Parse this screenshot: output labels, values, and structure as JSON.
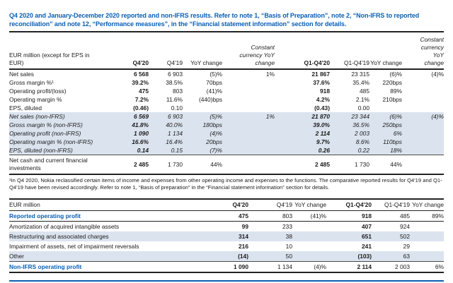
{
  "title": "Q4 2020 and January-December 2020 reported and non-IFRS results. Refer to note 1, “Basis of Preparation”, note 2, “Non-IFRS to reported reconciliation” and note 12, “Performance measures”, in the “Financial statement information” section for details.",
  "colors": {
    "accent_blue": "#0a5fb4",
    "row_shading": "#dbe3ee",
    "rule_dark": "#232323"
  },
  "table1": {
    "unit_label": "EUR million (except for EPS in EUR)",
    "columns": [
      "Q4'20",
      "Q4'19",
      "YoY change",
      "Constant currency YoY change",
      "Q1-Q4'20",
      "Q1-Q4'19",
      "YoY change",
      "Constant currency YoY change"
    ],
    "rows": [
      {
        "label": "Net sales",
        "variant": "reported",
        "values": [
          "6 568",
          "6 903",
          "(5)%",
          "1%",
          "21 867",
          "23 315",
          "(6)%",
          "(4)%"
        ]
      },
      {
        "label": "Gross margin %¹",
        "variant": "reported",
        "values": [
          "39.2%",
          "38.5%",
          "70bps",
          "",
          "37.6%",
          "35.4%",
          "220bps",
          ""
        ]
      },
      {
        "label": "Operating profit/(loss)",
        "variant": "reported",
        "values": [
          "475",
          "803",
          "(41)%",
          "",
          "918",
          "485",
          "89%",
          ""
        ]
      },
      {
        "label": "Operating margin %",
        "variant": "reported",
        "values": [
          "7.2%",
          "11.6%",
          "(440)bps",
          "",
          "4.2%",
          "2.1%",
          "210bps",
          ""
        ]
      },
      {
        "label": "EPS, diluted",
        "variant": "reported",
        "values": [
          "(0.46)",
          "0.10",
          "",
          "",
          "(0.43)",
          "0.00",
          "",
          ""
        ]
      },
      {
        "label": "Net sales (non-IFRS)",
        "variant": "non-ifrs",
        "values": [
          "6 569",
          "6 903",
          "(5)%",
          "1%",
          "21 870",
          "23 344",
          "(6)%",
          "(4)%"
        ]
      },
      {
        "label": "Gross margin % (non-IFRS)",
        "variant": "non-ifrs",
        "values": [
          "41.8%",
          "40.0%",
          "180bps",
          "",
          "39.0%",
          "36.5%",
          "250bps",
          ""
        ]
      },
      {
        "label": "Operating profit (non-IFRS)",
        "variant": "non-ifrs",
        "values": [
          "1 090",
          "1 134",
          "(4)%",
          "",
          "2 114",
          "2 003",
          "6%",
          ""
        ]
      },
      {
        "label": "Operating margin % (non-IFRS)",
        "variant": "non-ifrs",
        "values": [
          "16.6%",
          "16.4%",
          "20bps",
          "",
          "9.7%",
          "8.6%",
          "110bps",
          ""
        ]
      },
      {
        "label": "EPS, diluted (non-IFRS)",
        "variant": "non-ifrs",
        "values": [
          "0.14",
          "0.15",
          "(7)%",
          "",
          "0.26",
          "0.22",
          "18%",
          ""
        ]
      },
      {
        "label": "Net cash and current financial investments",
        "variant": "net-cash",
        "values": [
          "2 485",
          "1 730",
          "44%",
          "",
          "2 485",
          "1 730",
          "44%",
          ""
        ]
      }
    ],
    "footnote": "¹In Q4 2020, Nokia reclassified certain items of income and expenses from other operating income and expenses to the functions. The comparative reported results for Q4'19 and Q1-Q4'19 have been revised accordingly. Refer to note 1, “Basis of preparation” in the “Financial statement information” section for details."
  },
  "table2": {
    "unit_label": "EUR million",
    "columns": [
      "Q4'20",
      "Q4'19",
      "YoY change",
      "Q1-Q4'20",
      "Q1-Q4'19",
      "YoY change"
    ],
    "rows": [
      {
        "label": "Reported operating profit",
        "variant": "highlight",
        "values": [
          "475",
          "803",
          "(41)%",
          "918",
          "485",
          "89%"
        ]
      },
      {
        "label": "Amortization of acquired intangible assets",
        "variant": "plain",
        "values": [
          "99",
          "233",
          "",
          "407",
          "924",
          ""
        ]
      },
      {
        "label": "Restructuring and associated charges",
        "variant": "shaded",
        "values": [
          "314",
          "38",
          "",
          "651",
          "502",
          ""
        ]
      },
      {
        "label": "Impairment of assets, net of impairment reversals",
        "variant": "plain",
        "values": [
          "216",
          "10",
          "",
          "241",
          "29",
          ""
        ]
      },
      {
        "label": "Other",
        "variant": "shaded",
        "values": [
          "(14)",
          "50",
          "",
          "(103)",
          "63",
          ""
        ]
      },
      {
        "label": "Non-IFRS operating profit",
        "variant": "total",
        "values": [
          "1 090",
          "1 134",
          "(4)%",
          "2 114",
          "2 003",
          "6%"
        ]
      }
    ]
  }
}
